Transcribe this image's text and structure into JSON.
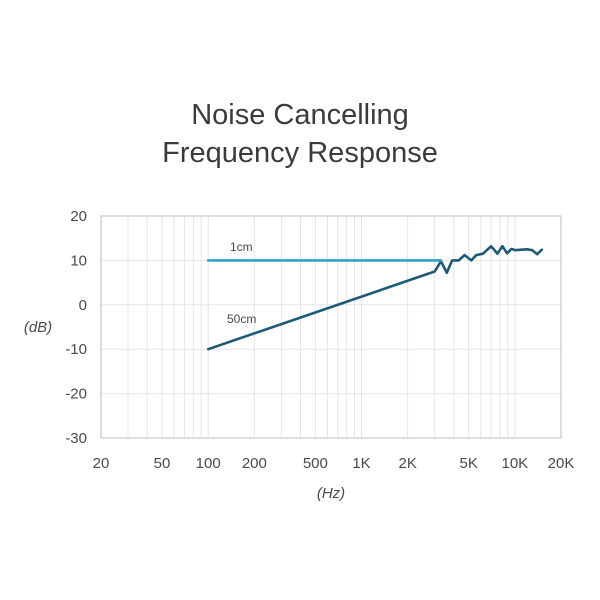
{
  "chart_data": {
    "type": "line",
    "title": [
      "Noise Cancelling",
      "Frequency Response"
    ],
    "xlabel": "(Hz)",
    "ylabel": "(dB)",
    "x_scale": "log",
    "xlim": [
      20,
      20000
    ],
    "ylim": [
      -30,
      20
    ],
    "x_ticks": [
      {
        "value": 20,
        "label": "20"
      },
      {
        "value": 50,
        "label": "50"
      },
      {
        "value": 100,
        "label": "100"
      },
      {
        "value": 200,
        "label": "200"
      },
      {
        "value": 500,
        "label": "500"
      },
      {
        "value": 1000,
        "label": "1K"
      },
      {
        "value": 2000,
        "label": "2K"
      },
      {
        "value": 5000,
        "label": "5K"
      },
      {
        "value": 10000,
        "label": "10K"
      },
      {
        "value": 20000,
        "label": "20K"
      }
    ],
    "y_ticks": [
      20,
      10,
      0,
      -10,
      -20,
      -30
    ],
    "grid": true,
    "series": [
      {
        "name": "1cm",
        "color": "#2ea3c6",
        "x": [
          100,
          3300
        ],
        "y": [
          10,
          10
        ]
      },
      {
        "name": "50cm",
        "color": "#1e5a78",
        "x": [
          100,
          3000,
          3300,
          3600,
          3900,
          4300,
          4700,
          5200,
          5600,
          6200,
          7000,
          7700,
          8300,
          8900,
          9500,
          10100,
          11000,
          12000,
          13000,
          14000,
          15000
        ],
        "y": [
          -10,
          7.5,
          9.8,
          7.2,
          10,
          10,
          11.2,
          10,
          11.2,
          11.5,
          13.2,
          11.5,
          13.2,
          11.6,
          12.6,
          12.3,
          12.4,
          12.5,
          12.3,
          11.4,
          12.4
        ]
      }
    ]
  }
}
